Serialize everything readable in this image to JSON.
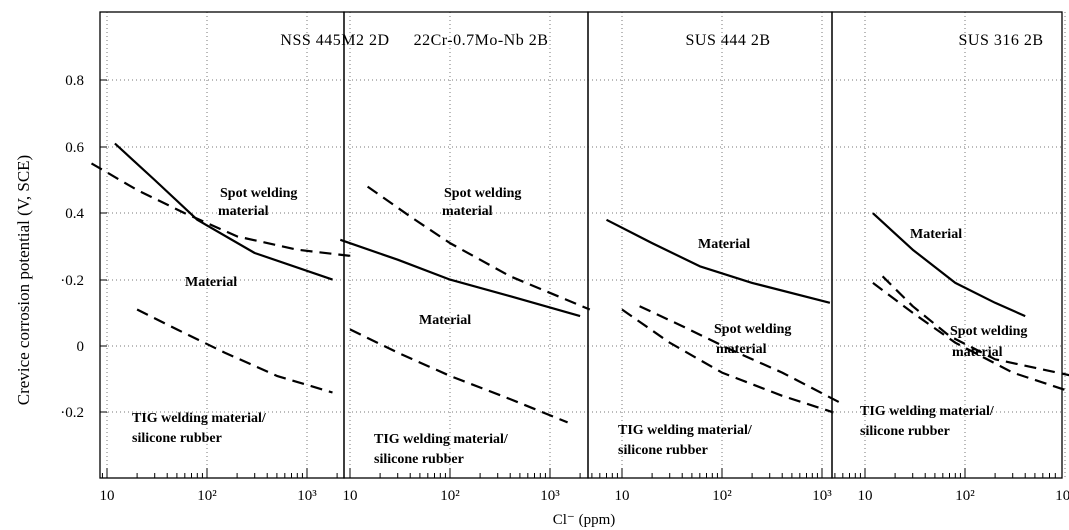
{
  "chart_data": [
    {
      "type": "line",
      "title": "NSS 445M2  2D",
      "xlabel": "Cl⁻  (ppm)",
      "ylabel": "Crevice corrosion potential (V, SCE)",
      "xscale": "log",
      "xlim": [
        3,
        5000
      ],
      "ylim": [
        -0.4,
        1.0
      ],
      "xticks": [
        "10",
        "10²",
        "10³"
      ],
      "yticks": [
        "0.8",
        "0.6",
        "0.4",
        "0.2",
        "0",
        "-0.2"
      ],
      "series": [
        {
          "name": "Material",
          "style": "solid",
          "x": [
            12,
            30,
            80,
            300,
            1800
          ],
          "y": [
            0.61,
            0.5,
            0.38,
            0.28,
            0.2
          ]
        },
        {
          "name": "Spot welding material",
          "style": "dashed",
          "x": [
            7,
            20,
            60,
            200,
            800,
            3000
          ],
          "y": [
            0.55,
            0.47,
            0.4,
            0.33,
            0.29,
            0.27
          ]
        },
        {
          "name": "TIG welding material/ silicone rubber",
          "style": "dashed",
          "x": [
            20,
            50,
            150,
            500,
            1800
          ],
          "y": [
            0.11,
            0.05,
            -0.02,
            -0.09,
            -0.14
          ]
        }
      ],
      "annotations": [
        "Spot welding",
        "material",
        "Material",
        "TIG welding material/",
        "silicone rubber"
      ]
    },
    {
      "type": "line",
      "title": "22Cr-0.7Mo-Nb  2B",
      "xscale": "log",
      "xlim": [
        3,
        5000
      ],
      "ylim": [
        -0.4,
        1.0
      ],
      "xticks": [
        "10",
        "10²",
        "10³"
      ],
      "series": [
        {
          "name": "Material",
          "style": "solid",
          "x": [
            8,
            30,
            100,
            400,
            2000
          ],
          "y": [
            0.32,
            0.26,
            0.2,
            0.15,
            0.09
          ]
        },
        {
          "name": "Spot welding material",
          "style": "dashed",
          "x": [
            15,
            40,
            100,
            400,
            2500
          ],
          "y": [
            0.48,
            0.39,
            0.31,
            0.21,
            0.11
          ]
        },
        {
          "name": "TIG welding material/ silicone rubber",
          "style": "dashed",
          "x": [
            10,
            30,
            100,
            400,
            1500
          ],
          "y": [
            0.05,
            -0.02,
            -0.09,
            -0.16,
            -0.23
          ]
        }
      ],
      "annotations": [
        "Spot welding",
        "material",
        "Material",
        "TIG welding material/",
        "silicone rubber"
      ]
    },
    {
      "type": "line",
      "title": "SUS 444  2B",
      "xscale": "log",
      "xlim": [
        3,
        5000
      ],
      "ylim": [
        -0.4,
        1.0
      ],
      "xticks": [
        "10",
        "10²",
        "10³"
      ],
      "series": [
        {
          "name": "Material",
          "style": "solid",
          "x": [
            7,
            20,
            60,
            200,
            1200
          ],
          "y": [
            0.38,
            0.31,
            0.24,
            0.19,
            0.13
          ]
        },
        {
          "name": "Spot welding material",
          "style": "dashed",
          "x": [
            15,
            40,
            120,
            400,
            1500
          ],
          "y": [
            0.12,
            0.06,
            -0.01,
            -0.08,
            -0.17
          ]
        },
        {
          "name": "TIG welding material/ silicone rubber",
          "style": "dashed",
          "x": [
            10,
            30,
            100,
            400,
            1300
          ],
          "y": [
            0.11,
            0.01,
            -0.08,
            -0.15,
            -0.2
          ]
        }
      ],
      "annotations": [
        "Material",
        "Spot welding",
        "material",
        "TIG welding material/",
        "silicone rubber"
      ]
    },
    {
      "type": "line",
      "title": "SUS 316  2B",
      "xscale": "log",
      "xlim": [
        3,
        5000
      ],
      "ylim": [
        -0.4,
        1.0
      ],
      "xticks": [
        "10",
        "10²",
        "10³"
      ],
      "series": [
        {
          "name": "Material",
          "style": "solid",
          "x": [
            12,
            30,
            80,
            200,
            400
          ],
          "y": [
            0.4,
            0.29,
            0.19,
            0.13,
            0.09
          ]
        },
        {
          "name": "Spot welding material",
          "style": "dashed",
          "x": [
            15,
            30,
            70,
            200,
            1200
          ],
          "y": [
            0.21,
            0.12,
            0.03,
            -0.04,
            -0.09
          ]
        },
        {
          "name": "TIG welding material/ silicone rubber",
          "style": "dashed",
          "x": [
            12,
            30,
            80,
            300,
            1200
          ],
          "y": [
            0.19,
            0.1,
            0.01,
            -0.08,
            -0.14
          ]
        }
      ],
      "annotations": [
        "Material",
        "Spot welding",
        "material",
        "TIG welding material/",
        "silicone rubber"
      ]
    }
  ]
}
